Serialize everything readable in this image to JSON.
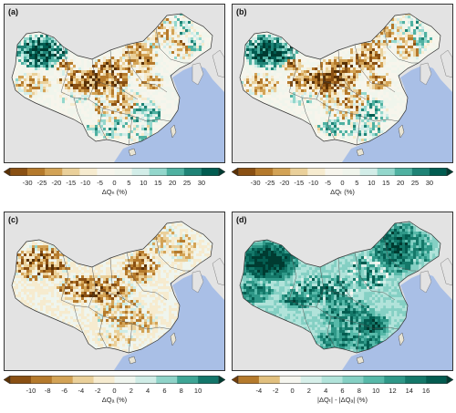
{
  "panels": [
    {
      "label": "(a)",
      "axis_label": "ΔQₙ (%)",
      "ticks": [
        "-30",
        "-25",
        "-20",
        "-15",
        "-10",
        "-5",
        "0",
        "5",
        "10",
        "15",
        "20",
        "25",
        "30"
      ],
      "colors": [
        "#5a3106",
        "#8a5013",
        "#b57a2c",
        "#d3a356",
        "#ead09a",
        "#f6ebcf",
        "#f7f5ec",
        "#f0f5ec",
        "#d2ede8",
        "#93d7cc",
        "#4fb1a1",
        "#1f8376",
        "#015c51",
        "#003b31"
      ]
    },
    {
      "label": "(b)",
      "axis_label": "ΔQₜ (%)",
      "ticks": [
        "-30",
        "-25",
        "-20",
        "-15",
        "-10",
        "-5",
        "0",
        "5",
        "10",
        "15",
        "20",
        "25",
        "30"
      ],
      "colors": [
        "#5a3106",
        "#8a5013",
        "#b57a2c",
        "#d3a356",
        "#ead09a",
        "#f6ebcf",
        "#f7f5ec",
        "#f0f5ec",
        "#d2ede8",
        "#93d7cc",
        "#4fb1a1",
        "#1f8376",
        "#015c51",
        "#003b31"
      ]
    },
    {
      "label": "(c)",
      "axis_label": "ΔQₐ (%)",
      "ticks": [
        "-10",
        "-8",
        "-6",
        "-4",
        "-2",
        "0",
        "2",
        "4",
        "6",
        "8",
        "10"
      ],
      "colors": [
        "#5a3106",
        "#8a5013",
        "#b57a2c",
        "#d3a356",
        "#ead09a",
        "#f6ebcf",
        "#eff5ee",
        "#cfece6",
        "#8fd3c8",
        "#3ea595",
        "#13766a",
        "#003b31"
      ]
    },
    {
      "label": "(d)",
      "axis_label": "|ΔQₜ| - |ΔQₐ| (%)",
      "ticks": [
        "-4",
        "-2",
        "0",
        "2",
        "4",
        "6",
        "8",
        "10",
        "12",
        "14",
        "16"
      ],
      "colors": [
        "#6e3d0b",
        "#b57a2c",
        "#e1c07f",
        "#f5f5ee",
        "#d6efe9",
        "#b1e3da",
        "#85d0c4",
        "#57b9a9",
        "#2f9888",
        "#147869",
        "#045c50",
        "#003b31"
      ]
    }
  ]
}
